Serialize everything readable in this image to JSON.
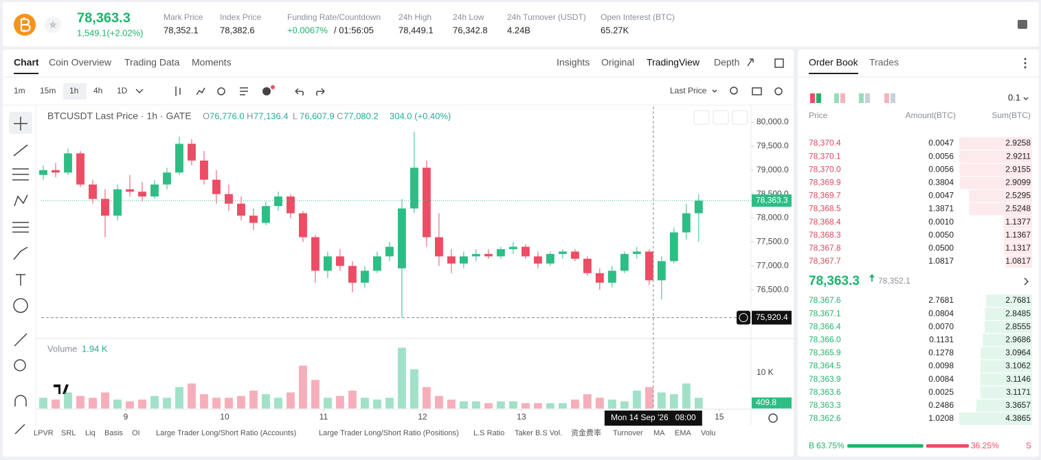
{
  "header": {
    "price": "78,363.3",
    "change": "1,549.1(+2.02%)",
    "stats": [
      {
        "label": "Mark Price",
        "value": "78,352.1"
      },
      {
        "label": "Index Price",
        "value": "78,382.6"
      },
      {
        "label": "Funding Rate/Countdown",
        "value": "+0.0067%",
        "extra": "/ 01:56:05"
      },
      {
        "label": "24h High",
        "value": "78,449.1"
      },
      {
        "label": "24h Low",
        "value": "76,342.8"
      },
      {
        "label": "24h Turnover (USDT)",
        "value": "4.24B"
      },
      {
        "label": "Open Interest (BTC)",
        "value": "65.27K"
      }
    ]
  },
  "tabs": [
    "Chart",
    "Coin Overview",
    "Trading Data",
    "Moments"
  ],
  "view_tabs": [
    "Insights",
    "Original",
    "TradingView",
    "Depth"
  ],
  "intervals": [
    "1m",
    "15m",
    "1h",
    "4h",
    "1D"
  ],
  "price_source": "Last Price",
  "chart_data": {
    "type": "candlestick",
    "title": "BTCUSDT Last Price · 1h · GATE",
    "legend": [
      {
        "label": "O",
        "value": "76,776.0"
      },
      {
        "label": "H",
        "value": "77,136.4"
      },
      {
        "label": "L",
        "value": "76,607.9"
      },
      {
        "label": "C",
        "value": "77,080.2"
      }
    ],
    "legend_change": "304.0 (+0.40%)",
    "x": [
      -20,
      -17,
      -14,
      -11,
      -8,
      -5,
      -2,
      1,
      4,
      7,
      10,
      13,
      16,
      19,
      22,
      25,
      28,
      31,
      34,
      37,
      40,
      43,
      46,
      49,
      52,
      55,
      58,
      61,
      64,
      67,
      70,
      73,
      76,
      79,
      82,
      85,
      88,
      91,
      94,
      97,
      100,
      103,
      106,
      109,
      112,
      115,
      118,
      121,
      124,
      127,
      130,
      133,
      136,
      139
    ],
    "open": [
      78900,
      79000,
      78950,
      79350,
      78700,
      78400,
      78050,
      78600,
      78550,
      78450,
      78700,
      78950,
      79550,
      79200,
      78800,
      78500,
      78300,
      78050,
      77900,
      78250,
      78450,
      78100,
      77600,
      76900,
      77200,
      77000,
      76650,
      76900,
      77200,
      76950,
      78200,
      79050,
      77600,
      77200,
      77050,
      77200,
      77250,
      77200,
      77350,
      77400,
      77200,
      77050,
      77250,
      77300,
      77150,
      76850,
      76650,
      76900,
      77250,
      77300,
      76700,
      77100,
      77700,
      78100
    ],
    "high": [
      79100,
      79150,
      79450,
      79400,
      78800,
      78600,
      78700,
      78900,
      78750,
      78800,
      79050,
      79700,
      79650,
      79400,
      79000,
      78700,
      78450,
      78200,
      78350,
      78550,
      78500,
      78150,
      77650,
      77300,
      77350,
      77100,
      77000,
      77300,
      77500,
      78400,
      79800,
      79200,
      78100,
      77350,
      77300,
      77350,
      77350,
      77400,
      77500,
      77450,
      77300,
      77300,
      77350,
      77350,
      77200,
      76950,
      77000,
      77300,
      77400,
      77350,
      77200,
      77800,
      78300,
      78500
    ],
    "low": [
      78800,
      78850,
      78900,
      78650,
      78300,
      77600,
      77950,
      78450,
      78350,
      78400,
      78600,
      78900,
      79100,
      78700,
      78300,
      78150,
      77950,
      77750,
      77850,
      78150,
      78000,
      77500,
      76650,
      76750,
      76900,
      76450,
      76550,
      76850,
      77100,
      75920,
      78100,
      77400,
      77000,
      76850,
      76950,
      77100,
      77150,
      77150,
      77250,
      77150,
      76950,
      77000,
      77150,
      77100,
      76800,
      76500,
      76550,
      76850,
      77150,
      76600,
      76300,
      77050,
      77550,
      77500
    ],
    "close": [
      79000,
      78950,
      79350,
      78700,
      78400,
      78050,
      78600,
      78550,
      78450,
      78700,
      78950,
      79550,
      79200,
      78800,
      78500,
      78300,
      78050,
      77900,
      78250,
      78450,
      78100,
      77600,
      76900,
      77200,
      77000,
      76650,
      76900,
      77200,
      77400,
      78200,
      79050,
      77600,
      77200,
      77050,
      77200,
      77250,
      77200,
      77350,
      77400,
      77200,
      77050,
      77250,
      77300,
      77150,
      76850,
      76650,
      76900,
      77250,
      77300,
      76700,
      77100,
      77700,
      78100,
      78363.3
    ],
    "volume": [
      3000,
      2500,
      4500,
      3500,
      3000,
      4500,
      2500,
      2000,
      2500,
      3500,
      3000,
      6000,
      7000,
      4000,
      3000,
      3000,
      3500,
      5000,
      4000,
      3000,
      4500,
      12000,
      8000,
      3000,
      3500,
      5000,
      3000,
      2500,
      3000,
      17000,
      11000,
      6000,
      3500,
      2500,
      2000,
      2000,
      1500,
      2000,
      2000,
      1500,
      1500,
      1500,
      1500,
      2500,
      4000,
      3000,
      2500,
      2000,
      5000,
      6000,
      4500,
      4000,
      7000,
      3000
    ],
    "xlim": [
      -20.5,
      151.7
    ],
    "xticks": [
      {
        "value": 0,
        "label": "9"
      },
      {
        "value": 24,
        "label": "10"
      },
      {
        "value": 48,
        "label": "11"
      },
      {
        "value": 72,
        "label": "12"
      },
      {
        "value": 96,
        "label": "13"
      },
      {
        "value": 144,
        "label": "15"
      }
    ],
    "ylim": [
      75500,
      80330
    ],
    "yticks": [
      {
        "value": 76500,
        "label": "76,500.0"
      },
      {
        "value": 77000,
        "label": "77,000.0"
      },
      {
        "value": 77500,
        "label": "77,500.0"
      },
      {
        "value": 78000,
        "label": "78,000.0"
      },
      {
        "value": 78500,
        "label": "78,500.0"
      },
      {
        "value": 79000,
        "label": "79,000.0"
      },
      {
        "value": 79500,
        "label": "79,500.0"
      },
      {
        "value": 80000,
        "label": "80,000.0"
      }
    ],
    "up_color": "#2ebd85",
    "down_color": "#ec4d65",
    "price_marker": {
      "value": 78363.3,
      "label": "78,363.3"
    },
    "crosshair": {
      "x": 128,
      "x_label": "Mon 14 Sep '26   08:00",
      "y": 75920.4,
      "y_label": "75,920.4"
    },
    "volume_title": "Volume",
    "volume_legend": "1.94 K",
    "volume_ylim": [
      0,
      19200
    ],
    "volume_yticks": [
      {
        "value": 10000,
        "label": "10 K"
      }
    ],
    "volume_marker": {
      "value": 409.8,
      "label": "409.8"
    }
  },
  "indicators": [
    "LPVR",
    "SRL",
    "Liq",
    "Basis",
    "OI",
    "Large Trader Long/Short Ratio (Accounts)",
    "Large Trader Long/Short Ratio (Positions)",
    "L.S Ratio",
    "Taker B.S Vol.",
    "资金费率",
    "Turnover",
    "MA",
    "EMA",
    "Volu"
  ],
  "order_book": {
    "tabs": [
      "Order Book",
      "Trades"
    ],
    "precision": "0.1",
    "columns": [
      "Price",
      "Amount(BTC)",
      "Sum(BTC)"
    ],
    "asks": [
      [
        "78,370.4",
        "0.0047",
        "2.9258"
      ],
      [
        "78,370.1",
        "0.0056",
        "2.9211"
      ],
      [
        "78,370.0",
        "0.0056",
        "2.9155"
      ],
      [
        "78,369.9",
        "0.3804",
        "2.9099"
      ],
      [
        "78,369.7",
        "0.0047",
        "2.5295"
      ],
      [
        "78,368.5",
        "1.3871",
        "2.5248"
      ],
      [
        "78,368.4",
        "0.0010",
        "1.1377"
      ],
      [
        "78,368.3",
        "0.0050",
        "1.1367"
      ],
      [
        "78,367.8",
        "0.0500",
        "1.1317"
      ],
      [
        "78,367.7",
        "1.0817",
        "1.0817"
      ]
    ],
    "last_price": "78,363.3",
    "mark_price": "78,352.1",
    "bids": [
      [
        "78,367.6",
        "2.7681",
        "2.7681"
      ],
      [
        "78,367.1",
        "0.0804",
        "2.8485"
      ],
      [
        "78,366.4",
        "0.0070",
        "2.8555"
      ],
      [
        "78,366.0",
        "0.1131",
        "2.9686"
      ],
      [
        "78,365.9",
        "0.1278",
        "3.0964"
      ],
      [
        "78,364.5",
        "0.0098",
        "3.1062"
      ],
      [
        "78,363.9",
        "0.0084",
        "3.1146"
      ],
      [
        "78,363.6",
        "0.0025",
        "3.1171"
      ],
      [
        "78,363.3",
        "0.2486",
        "3.3657"
      ],
      [
        "78,362.6",
        "1.0208",
        "4.3865"
      ]
    ],
    "buy_label": "B",
    "buy_ratio": {
      "value": 63.75,
      "label": "63.75%"
    },
    "sell_ratio": {
      "value": 36.25,
      "label": "36.25%"
    },
    "sell_label": "S"
  }
}
